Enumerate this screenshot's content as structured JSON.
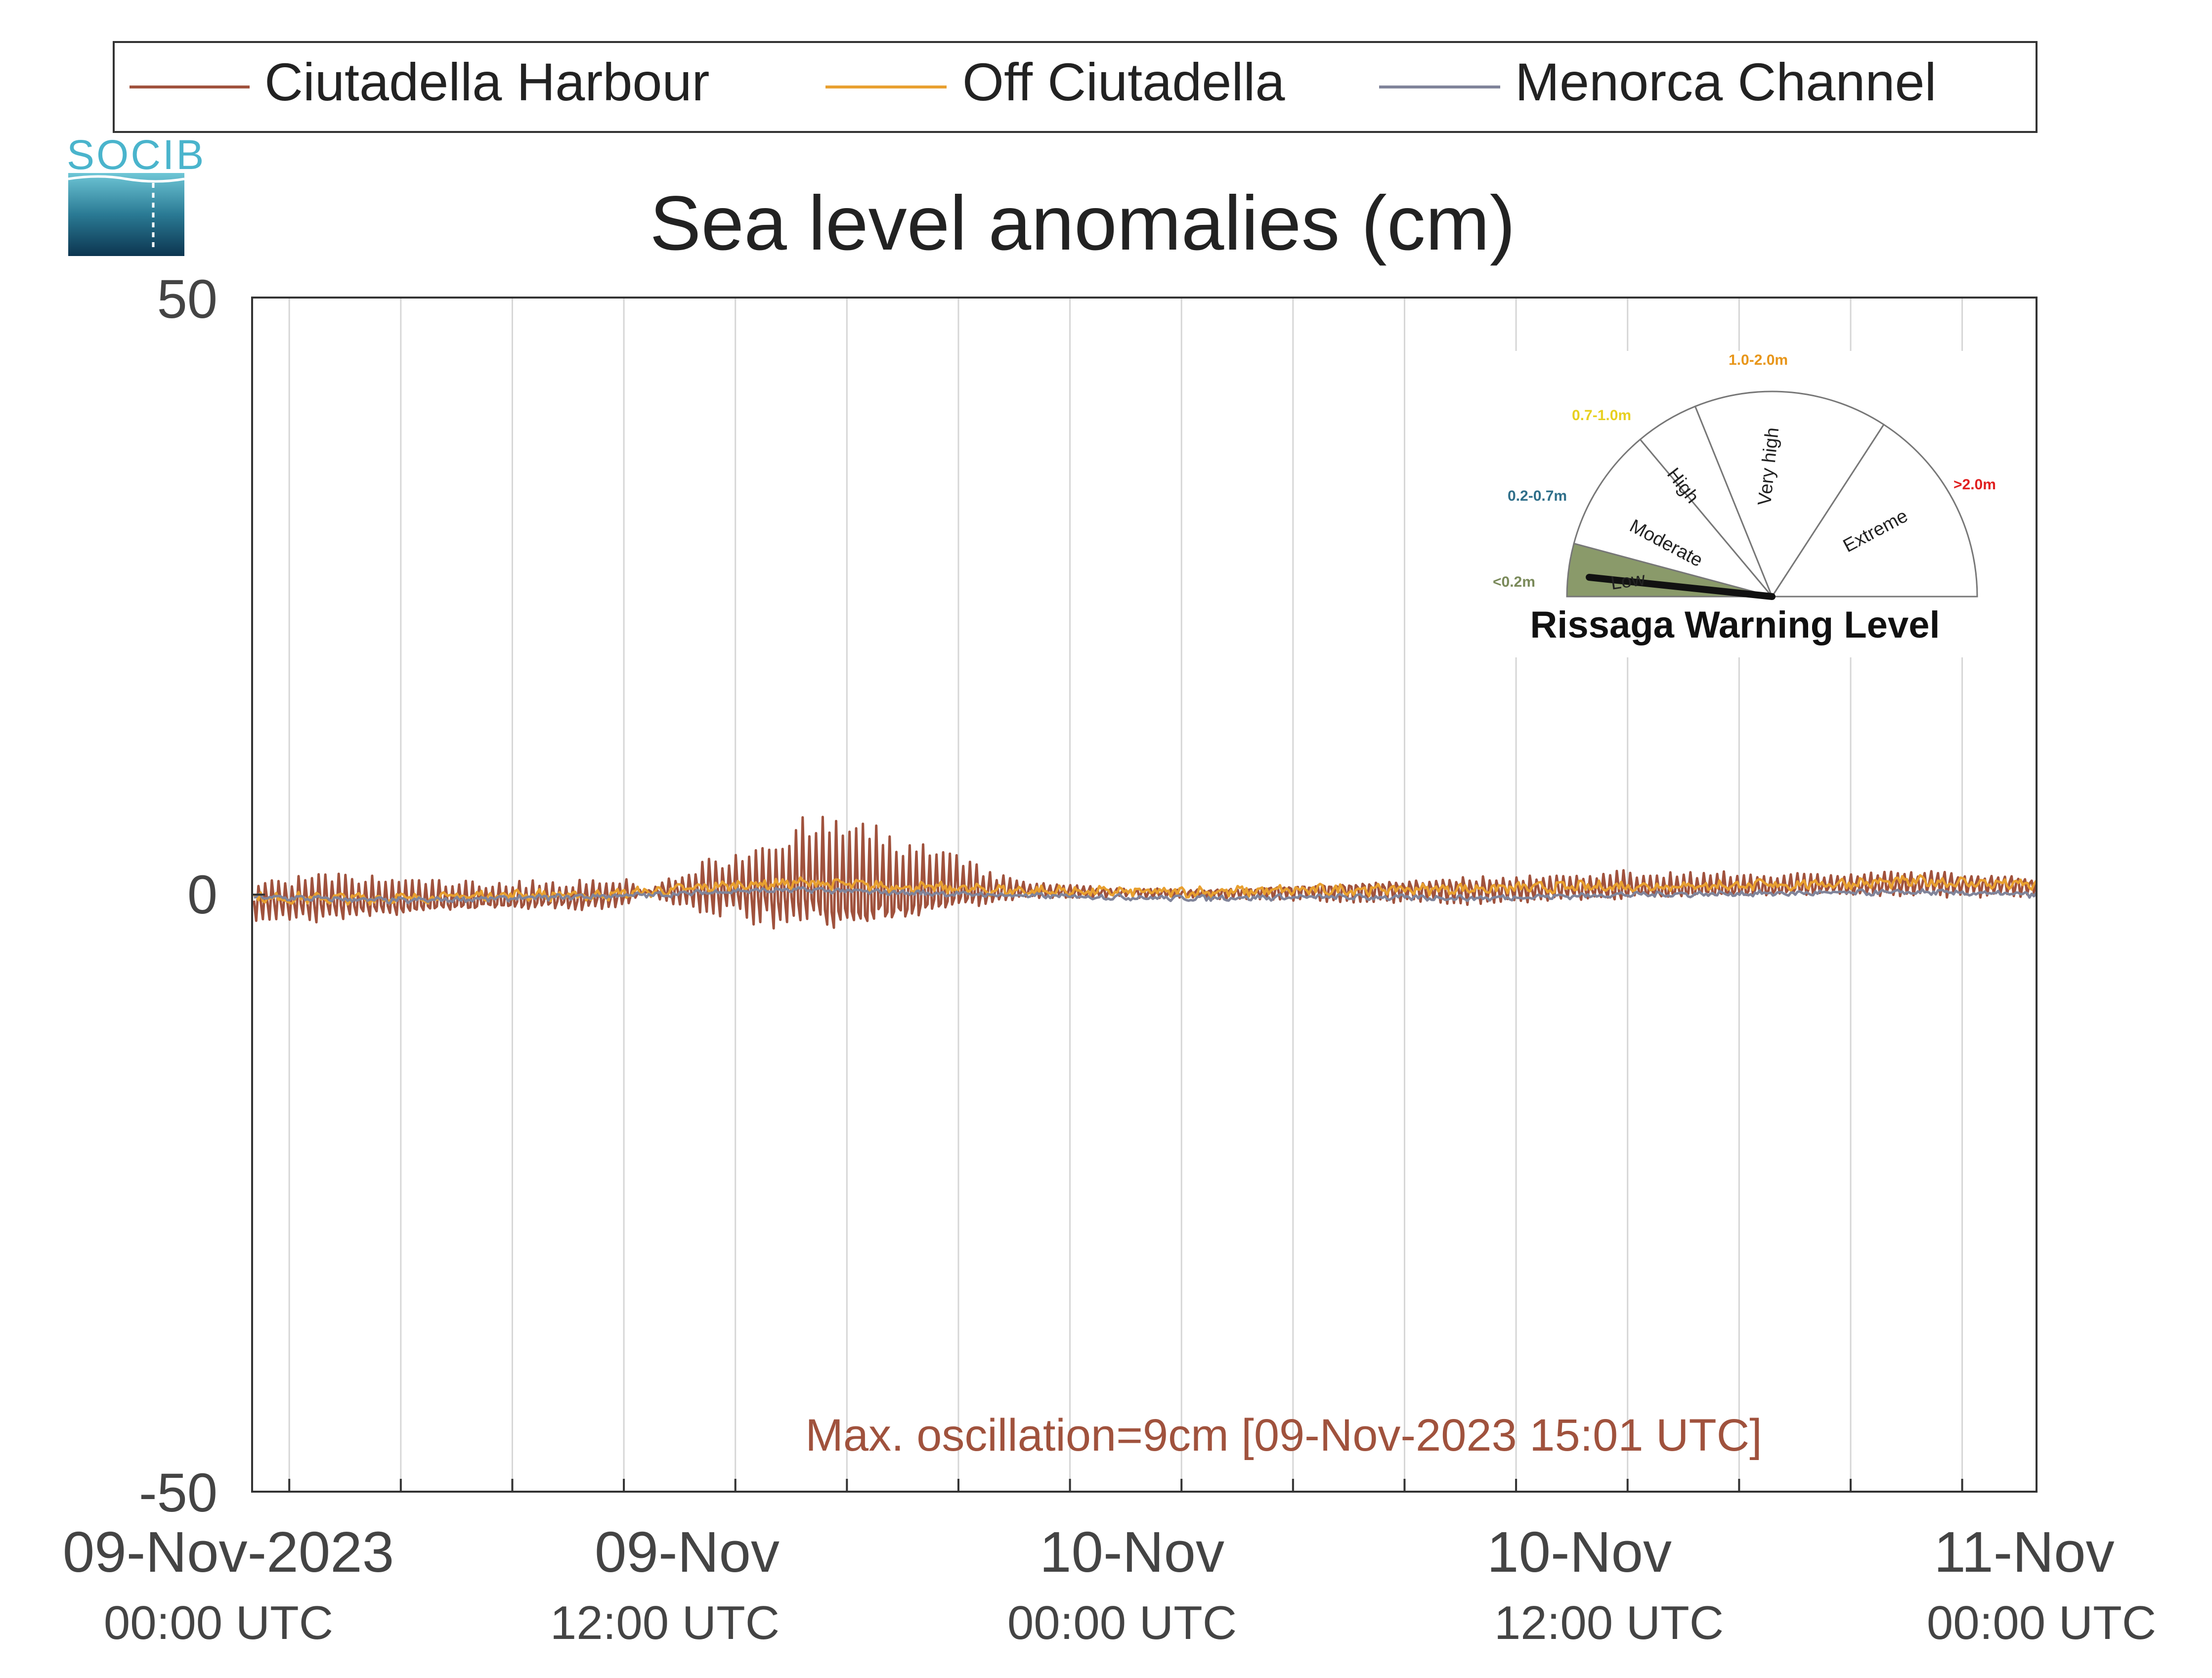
{
  "legend": {
    "items": [
      {
        "label": "Ciutadella Harbour",
        "color": "#a0523d"
      },
      {
        "label": "Off Ciutadella",
        "color": "#e8a030"
      },
      {
        "label": "Menorca Channel",
        "color": "#80849a"
      }
    ]
  },
  "logo": {
    "text": "SOCIB"
  },
  "chart_data": {
    "type": "line",
    "title": "Sea level anomalies (cm)",
    "ylim": [
      -50,
      50
    ],
    "yticks": [
      "50",
      "0",
      "-50"
    ],
    "grid": "vertical",
    "legend_position": "top",
    "x_range_hours": [
      -1,
      47
    ],
    "xticks": [
      {
        "line1": "09-Nov-2023",
        "line2": "00:00 UTC",
        "hour": 0
      },
      {
        "line1": "09-Nov",
        "line2": "12:00 UTC",
        "hour": 12
      },
      {
        "line1": "10-Nov",
        "line2": "00:00 UTC",
        "hour": 24
      },
      {
        "line1": "10-Nov",
        "line2": "12:00 UTC",
        "hour": 36
      },
      {
        "line1": "11-Nov",
        "line2": "00:00 UTC",
        "hour": 48
      }
    ],
    "series": [
      {
        "name": "Ciutadella Harbour",
        "color": "#a0523d",
        "envelope": [
          [
            -1,
            -2
          ],
          [
            1,
            -2.5
          ],
          [
            3,
            -2
          ],
          [
            5,
            -1.5
          ],
          [
            7,
            -1.5
          ],
          [
            9,
            -1.5
          ],
          [
            10,
            1
          ],
          [
            11,
            2.5
          ],
          [
            12,
            3.5
          ],
          [
            13,
            5
          ],
          [
            14,
            6
          ],
          [
            15,
            6
          ],
          [
            16,
            5
          ],
          [
            17,
            4
          ],
          [
            18,
            3
          ],
          [
            19,
            1.5
          ],
          [
            20,
            0.8
          ],
          [
            22,
            0.5
          ],
          [
            24,
            0.5
          ],
          [
            26,
            0.6
          ],
          [
            28,
            1
          ],
          [
            30,
            1.3
          ],
          [
            32,
            1.4
          ],
          [
            34,
            1.3
          ],
          [
            36,
            1.5
          ],
          [
            38,
            1.3
          ],
          [
            40,
            1.2
          ],
          [
            42,
            1.1
          ],
          [
            44,
            1.3
          ],
          [
            46,
            1.2
          ],
          [
            47,
            1.0
          ]
        ],
        "mean": [
          [
            -1,
            -0.5
          ],
          [
            2,
            -0.5
          ],
          [
            4,
            -0.4
          ],
          [
            8,
            -0.2
          ],
          [
            10,
            0.3
          ],
          [
            12,
            0.6
          ],
          [
            14,
            0.8
          ],
          [
            16,
            0.6
          ],
          [
            18,
            0.4
          ],
          [
            20,
            0.3
          ],
          [
            24,
            0.1
          ],
          [
            28,
            0.3
          ],
          [
            32,
            0.4
          ],
          [
            36,
            0.6
          ],
          [
            40,
            0.7
          ],
          [
            44,
            0.9
          ],
          [
            47,
            0.7
          ]
        ]
      },
      {
        "name": "Off Ciutadella",
        "color": "#e8a030",
        "mean": [
          [
            -1,
            -0.3
          ],
          [
            3,
            -0.3
          ],
          [
            6,
            0
          ],
          [
            8,
            -0.1
          ],
          [
            10,
            0.3
          ],
          [
            12,
            0.8
          ],
          [
            14,
            1
          ],
          [
            16,
            0.7
          ],
          [
            18,
            0.5
          ],
          [
            20,
            0.3
          ],
          [
            24,
            0.2
          ],
          [
            28,
            0.4
          ],
          [
            32,
            0.5
          ],
          [
            36,
            0.7
          ],
          [
            40,
            0.8
          ],
          [
            44,
            1.1
          ],
          [
            47,
            0.8
          ]
        ],
        "amp": 0.6
      },
      {
        "name": "Menorca Channel",
        "color": "#80849a",
        "mean": [
          [
            -1,
            -0.2
          ],
          [
            3,
            -0.5
          ],
          [
            6,
            -0.3
          ],
          [
            10,
            0
          ],
          [
            12,
            0.3
          ],
          [
            14,
            0.4
          ],
          [
            16,
            0.2
          ],
          [
            20,
            -0.1
          ],
          [
            24,
            -0.3
          ],
          [
            28,
            -0.2
          ],
          [
            32,
            -0.3
          ],
          [
            36,
            0
          ],
          [
            40,
            0.1
          ],
          [
            44,
            0.2
          ],
          [
            47,
            0
          ]
        ],
        "amp": 0.3
      }
    ],
    "annotation": "Max. oscillation=9cm [09-Nov-2023 15:01 UTC]",
    "annotation_color": "#a0523d"
  },
  "gauge": {
    "title": "Rissaga Warning Level",
    "current_level": "Low",
    "segments": [
      {
        "label": "Low",
        "range": "<0.2m",
        "range_color": "#7a8a5a",
        "fill": "#8a9a6a"
      },
      {
        "label": "Moderate",
        "range": "0.2-0.7m",
        "range_color": "#2f6f8a",
        "fill": "#ffffff"
      },
      {
        "label": "High",
        "range": "0.7-1.0m",
        "range_color": "#e8d020",
        "fill": "#ffffff"
      },
      {
        "label": "Very high",
        "range": "1.0-2.0m",
        "range_color": "#e8961a",
        "fill": "#ffffff"
      },
      {
        "label": "Extreme",
        "range": ">2.0m",
        "range_color": "#e02020",
        "fill": "#ffffff"
      }
    ]
  }
}
